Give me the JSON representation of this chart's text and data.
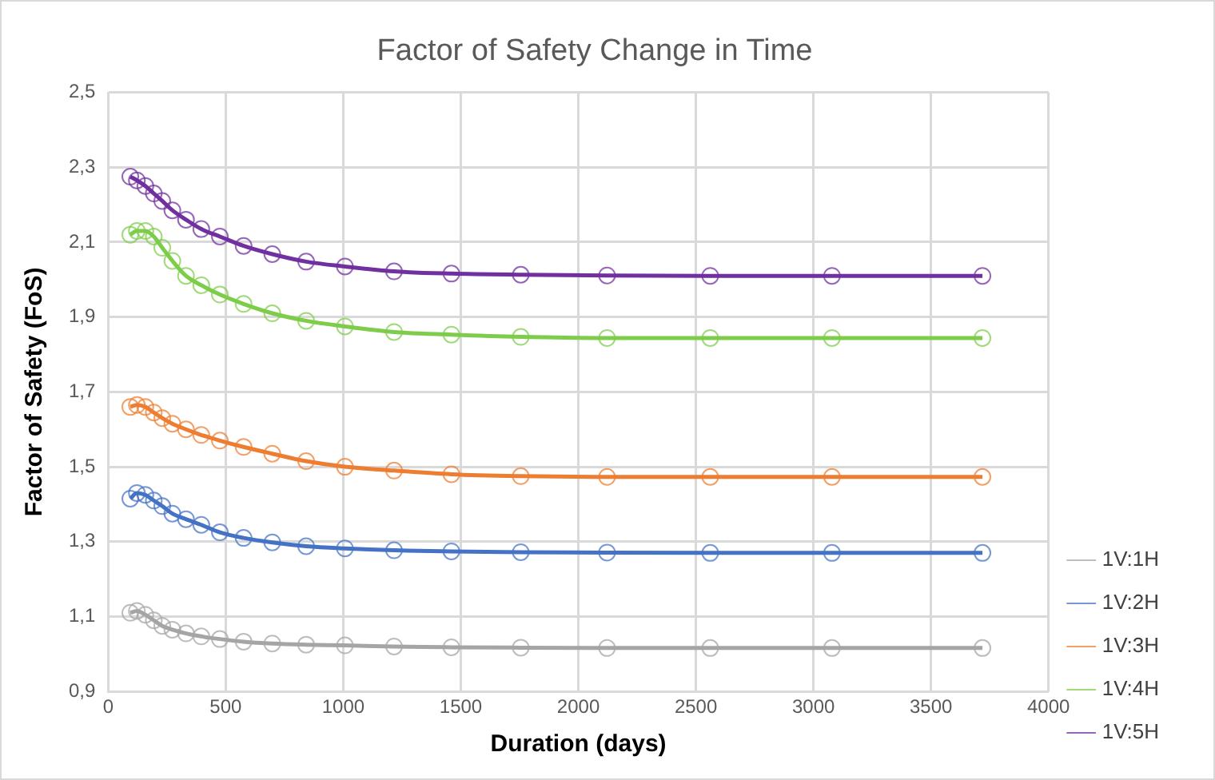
{
  "chart_data": {
    "type": "line",
    "title": "Factor of Safety Change in Time",
    "xlabel": "Duration (days)",
    "ylabel": "Factor of Safety (FoS)",
    "x": [
      94,
      122,
      158,
      194,
      230,
      273,
      331,
      396,
      475,
      576,
      698,
      842,
      1007,
      1216,
      1460,
      1755,
      2122,
      2561,
      3079,
      3719
    ],
    "series": [
      {
        "name": "1V:1H",
        "color": "#a5a5a5",
        "values": [
          1.11,
          1.115,
          1.105,
          1.09,
          1.075,
          1.065,
          1.055,
          1.047,
          1.04,
          1.033,
          1.028,
          1.025,
          1.023,
          1.02,
          1.018,
          1.017,
          1.016,
          1.016,
          1.016,
          1.016
        ]
      },
      {
        "name": "1V:2H",
        "color": "#4472c4",
        "values": [
          1.415,
          1.43,
          1.425,
          1.41,
          1.395,
          1.375,
          1.36,
          1.345,
          1.325,
          1.31,
          1.298,
          1.288,
          1.282,
          1.277,
          1.274,
          1.272,
          1.271,
          1.27,
          1.27,
          1.27
        ]
      },
      {
        "name": "1V:3H",
        "color": "#ed7d31",
        "values": [
          1.66,
          1.665,
          1.66,
          1.645,
          1.63,
          1.615,
          1.6,
          1.585,
          1.57,
          1.553,
          1.535,
          1.515,
          1.5,
          1.49,
          1.48,
          1.475,
          1.473,
          1.473,
          1.473,
          1.473
        ]
      },
      {
        "name": "1V:4H",
        "color": "#7dcc4a",
        "values": [
          2.12,
          2.13,
          2.13,
          2.115,
          2.085,
          2.05,
          2.01,
          1.985,
          1.96,
          1.935,
          1.91,
          1.89,
          1.875,
          1.86,
          1.853,
          1.847,
          1.844,
          1.844,
          1.844,
          1.844
        ]
      },
      {
        "name": "1V:5H",
        "color": "#7030a0",
        "values": [
          2.275,
          2.265,
          2.25,
          2.23,
          2.21,
          2.185,
          2.16,
          2.135,
          2.115,
          2.09,
          2.068,
          2.048,
          2.035,
          2.022,
          2.016,
          2.013,
          2.011,
          2.01,
          2.01,
          2.01
        ]
      }
    ],
    "xlim": [
      0,
      4000
    ],
    "xticks": [
      0,
      500,
      1000,
      1500,
      2000,
      2500,
      3000,
      3500,
      4000
    ],
    "ylim": [
      0.9,
      2.5
    ],
    "yticks": [
      {
        "value": 0.9,
        "label": "0,9"
      },
      {
        "value": 1.1,
        "label": "1,1"
      },
      {
        "value": 1.3,
        "label": "1,3"
      },
      {
        "value": 1.5,
        "label": "1,5"
      },
      {
        "value": 1.7,
        "label": "1,7"
      },
      {
        "value": 1.9,
        "label": "1,9"
      },
      {
        "value": 2.1,
        "label": "2,1"
      },
      {
        "value": 2.3,
        "label": "2,3"
      },
      {
        "value": 2.5,
        "label": "2,5"
      }
    ],
    "grid": true,
    "legend": "right",
    "marker": "circle",
    "line_style": "solid"
  }
}
